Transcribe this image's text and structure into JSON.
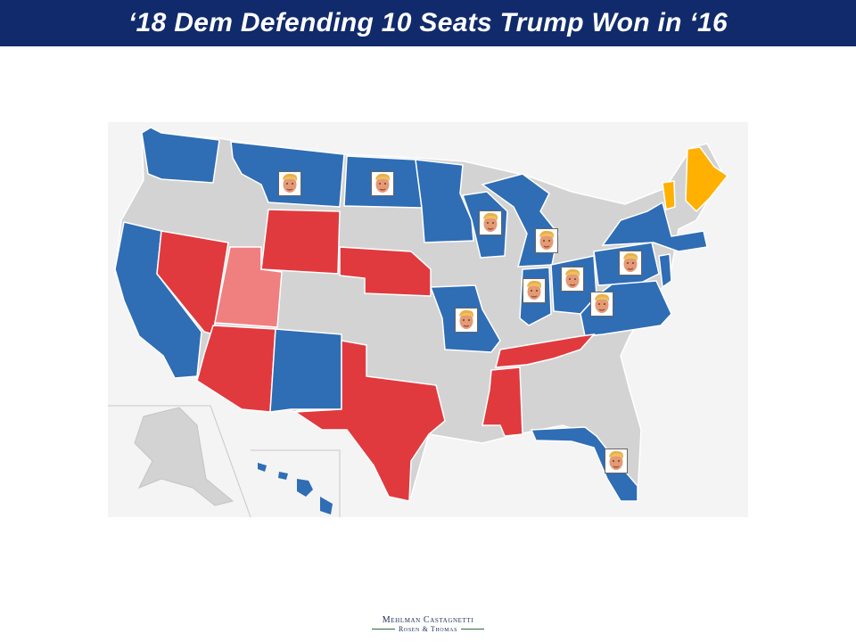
{
  "header": {
    "title": "‘18 Dem Defending 10 Seats Trump Won in ‘16"
  },
  "legend_colors": {
    "democrat_held": "#2f6db5",
    "republican_held": "#e03a3e",
    "republican_light": "#f08080",
    "independent": "#ffb000",
    "no_race": "#d3d3d3"
  },
  "map": {
    "marker_icon": "trump-face-icon",
    "trump_marked_states": [
      "Montana",
      "North Dakota",
      "Wisconsin",
      "Michigan",
      "Indiana",
      "Ohio",
      "Pennsylvania",
      "West Virginia",
      "Missouri",
      "Florida"
    ]
  },
  "footer": {
    "logo_line1": "Mehlman Castagnetti",
    "logo_line2": "Rosen & Thomas"
  }
}
